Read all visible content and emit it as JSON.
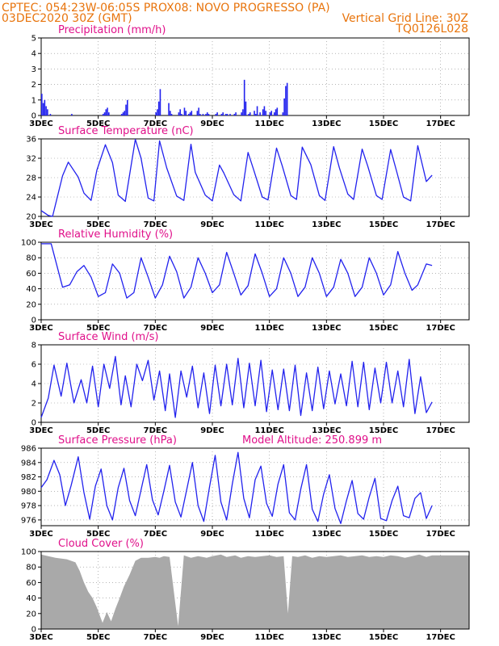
{
  "header": {
    "line1_left": "CPTEC:   054:23W-06:05S   PROX08: NOVO PROGRESSO (PA)",
    "line2_left": "03DEC2020 30Z (GMT)",
    "line2_right": "Vertical Grid Line: 30Z",
    "line3_right": "TQ0126L028"
  },
  "colors": {
    "header": "#e8740c",
    "panel_title": "#e0108a",
    "series": "#2222ee",
    "cloud": "#a9a9a9",
    "grid": "#888888"
  },
  "chart_data": [
    {
      "id": "precip",
      "type": "bar",
      "title": "Precipitation (mm/h)",
      "ylim": [
        0,
        5
      ],
      "yticks": [
        0,
        1,
        2,
        3,
        4,
        5
      ],
      "xticks": [
        "3DEC",
        "5DEC",
        "7DEC",
        "9DEC",
        "11DEC",
        "13DEC",
        "15DEC",
        "17DEC"
      ],
      "x": [
        0,
        0.1,
        0.2,
        0.3,
        0.4,
        0.6,
        2.1,
        4.3,
        4.4,
        4.5,
        4.6,
        4.7,
        5.6,
        5.7,
        5.8,
        5.9,
        6.0,
        8.0,
        8.1,
        8.2,
        8.3,
        8.9,
        9.0,
        9.1,
        9.6,
        9.7,
        9.8,
        10.0,
        10.1,
        10.3,
        10.4,
        10.5,
        10.9,
        11.0,
        11.1,
        11.3,
        11.5,
        11.6,
        11.7,
        12.2,
        12.3,
        12.6,
        12.7,
        12.9,
        13.0,
        13.2,
        13.5,
        13.6,
        14.0,
        14.1,
        14.2,
        14.3,
        14.5,
        14.6,
        14.9,
        15.0,
        15.1,
        15.3,
        15.5,
        15.6,
        15.7,
        16.0,
        16.1,
        16.3,
        16.4,
        16.5,
        16.9,
        17.0,
        17.1,
        17.2
      ],
      "values": [
        1.4,
        0.8,
        1.0,
        0.6,
        0.4,
        0.1,
        0.1,
        0.1,
        0.2,
        0.4,
        0.5,
        0.2,
        0.1,
        0.2,
        0.3,
        0.7,
        1.0,
        0.2,
        0.4,
        0.9,
        1.7,
        0.8,
        0.3,
        0.1,
        0.2,
        0.4,
        0.1,
        0.5,
        0.3,
        0.1,
        0.2,
        0.3,
        0.3,
        0.5,
        0.1,
        0.1,
        0.1,
        0.2,
        0.1,
        0.1,
        0.2,
        0.1,
        0.2,
        0.1,
        0.1,
        0.1,
        0.1,
        0.2,
        0.2,
        0.4,
        2.3,
        0.9,
        0.1,
        0.2,
        0.3,
        0.1,
        0.6,
        0.2,
        0.4,
        0.6,
        0.3,
        0.2,
        0.3,
        0.2,
        0.4,
        0.5,
        0.2,
        1.1,
        1.9,
        2.1
      ]
    },
    {
      "id": "temp",
      "type": "line",
      "title": "Surface Temperature (nC)",
      "ylim": [
        20,
        36
      ],
      "yticks": [
        20,
        24,
        28,
        32,
        36
      ],
      "xticks": [
        "3DEC",
        "5DEC",
        "7DEC",
        "9DEC",
        "11DEC",
        "13DEC",
        "15DEC",
        "17DEC"
      ],
      "x": [
        0,
        0.5,
        0.8,
        1.5,
        1.9,
        2.6,
        3.0,
        3.5,
        3.9,
        4.5,
        5.0,
        5.4,
        5.9,
        6.6,
        7.0,
        7.5,
        7.9,
        8.3,
        8.8,
        9.5,
        10.0,
        10.5,
        10.8,
        11.5,
        12.0,
        12.5,
        12.8,
        13.5,
        14.0,
        14.5,
        14.9,
        15.5,
        15.9,
        16.5,
        16.9,
        17.5,
        17.9,
        18.3,
        18.9,
        19.5,
        19.9,
        20.5,
        20.9,
        21.5,
        21.9,
        22.5,
        22.9,
        23.5,
        23.9,
        24.5,
        24.9,
        25.4,
        25.9,
        26.4,
        27.0,
        27.4
      ],
      "values": [
        21.2,
        20.2,
        20.0,
        28.4,
        31.2,
        28.1,
        24.8,
        23.3,
        29.5,
        34.8,
        31.1,
        24.4,
        23.1,
        35.9,
        32.0,
        23.8,
        23.2,
        35.6,
        30.0,
        24.2,
        23.3,
        34.9,
        29.1,
        24.4,
        23.2,
        30.6,
        29.0,
        24.5,
        23.2,
        33.2,
        29.6,
        24.0,
        23.4,
        34.1,
        30.4,
        24.3,
        23.5,
        34.3,
        30.7,
        24.3,
        23.3,
        34.4,
        30.1,
        24.6,
        23.5,
        33.9,
        30.3,
        24.3,
        23.5,
        33.8,
        29.5,
        24.0,
        23.2,
        34.6,
        27.2,
        28.5
      ]
    },
    {
      "id": "rh",
      "type": "line",
      "title": "Relative Humidity (%)",
      "ylim": [
        0,
        100
      ],
      "yticks": [
        0,
        20,
        40,
        60,
        80,
        100
      ],
      "xticks": [
        "3DEC",
        "5DEC",
        "7DEC",
        "9DEC",
        "11DEC",
        "13DEC",
        "15DEC",
        "17DEC"
      ],
      "x": [
        0,
        0.7,
        1.5,
        2.0,
        2.5,
        3.0,
        3.5,
        4.0,
        4.5,
        5.0,
        5.5,
        6.0,
        6.5,
        7.0,
        7.5,
        8.0,
        8.5,
        9.0,
        9.5,
        10.0,
        10.5,
        11.0,
        11.5,
        12.0,
        12.5,
        13.0,
        13.5,
        14.0,
        14.5,
        15.0,
        15.5,
        16.0,
        16.5,
        17.0,
        17.5,
        18.0,
        18.5,
        19.0,
        19.5,
        20.0,
        20.5,
        21.0,
        21.5,
        22.0,
        22.5,
        23.0,
        23.5,
        24.0,
        24.5,
        25.0,
        25.5,
        26.0,
        26.4,
        27.0,
        27.4
      ],
      "values": [
        98,
        98,
        42,
        45,
        62,
        70,
        55,
        30,
        35,
        72,
        60,
        28,
        35,
        80,
        55,
        28,
        45,
        82,
        62,
        28,
        42,
        80,
        60,
        35,
        45,
        87,
        60,
        32,
        44,
        85,
        60,
        30,
        40,
        80,
        60,
        30,
        42,
        80,
        60,
        30,
        42,
        78,
        60,
        30,
        42,
        80,
        60,
        32,
        45,
        88,
        60,
        38,
        45,
        72,
        70
      ]
    },
    {
      "id": "wind",
      "type": "line",
      "title": "Surface Wind (m/s)",
      "ylim": [
        0,
        8
      ],
      "yticks": [
        0,
        2,
        4,
        6,
        8
      ],
      "xticks": [
        "3DEC",
        "5DEC",
        "7DEC",
        "9DEC",
        "11DEC",
        "13DEC",
        "15DEC",
        "17DEC"
      ],
      "x": [
        0,
        0.5,
        0.9,
        1.4,
        1.8,
        2.3,
        2.8,
        3.2,
        3.6,
        4.0,
        4.4,
        4.8,
        5.2,
        5.6,
        5.9,
        6.3,
        6.7,
        7.1,
        7.5,
        7.9,
        8.3,
        8.7,
        9.0,
        9.4,
        9.8,
        10.2,
        10.6,
        11.0,
        11.4,
        11.8,
        12.2,
        12.6,
        13.0,
        13.4,
        13.8,
        14.2,
        14.6,
        15.0,
        15.4,
        15.8,
        16.2,
        16.6,
        17.0,
        17.4,
        17.8,
        18.2,
        18.6,
        19.0,
        19.4,
        19.8,
        20.2,
        20.6,
        21.0,
        21.4,
        21.8,
        22.2,
        22.6,
        23.0,
        23.4,
        23.8,
        24.2,
        24.6,
        25.0,
        25.4,
        25.8,
        26.2,
        26.6,
        27.0,
        27.4
      ],
      "values": [
        0.5,
        2.5,
        5.9,
        2.7,
        6.1,
        2.0,
        4.4,
        2.0,
        5.8,
        1.6,
        6.0,
        3.5,
        6.8,
        1.8,
        4.8,
        1.6,
        6.0,
        4.3,
        6.4,
        2.3,
        5.3,
        1.2,
        5.0,
        0.5,
        5.3,
        2.6,
        5.8,
        1.5,
        5.1,
        0.9,
        5.9,
        1.7,
        6.0,
        1.8,
        6.6,
        1.5,
        6.1,
        1.7,
        6.4,
        1.1,
        5.4,
        1.3,
        5.5,
        1.2,
        5.9,
        0.7,
        5.1,
        1.2,
        5.7,
        1.4,
        5.3,
        1.9,
        5.0,
        1.7,
        6.3,
        1.6,
        6.2,
        1.3,
        5.6,
        2.0,
        6.2,
        2.0,
        5.3,
        1.6,
        6.5,
        0.9,
        4.7,
        1.0,
        2.1
      ]
    },
    {
      "id": "pressure",
      "type": "line",
      "title": "Surface Pressure (hPa)",
      "annotation": "Model Altitude: 250.899 m",
      "ylim": [
        975.2,
        986
      ],
      "yticks": [
        976,
        978,
        980,
        982,
        984,
        986
      ],
      "xticks": [
        "3DEC",
        "5DEC",
        "7DEC",
        "9DEC",
        "11DEC",
        "13DEC",
        "15DEC",
        "17DEC"
      ],
      "x": [
        0,
        0.4,
        0.9,
        1.3,
        1.7,
        2.1,
        2.6,
        3.0,
        3.4,
        3.8,
        4.2,
        4.6,
        5.0,
        5.4,
        5.8,
        6.2,
        6.6,
        7.0,
        7.4,
        7.8,
        8.2,
        8.6,
        9.0,
        9.4,
        9.8,
        10.2,
        10.6,
        11.0,
        11.4,
        11.8,
        12.2,
        12.6,
        13.0,
        13.4,
        13.8,
        14.2,
        14.6,
        15.0,
        15.4,
        15.8,
        16.2,
        16.6,
        17.0,
        17.4,
        17.8,
        18.2,
        18.6,
        19.0,
        19.4,
        19.8,
        20.2,
        20.6,
        21.0,
        21.4,
        21.8,
        22.2,
        22.6,
        23.0,
        23.4,
        23.8,
        24.2,
        24.6,
        25.0,
        25.4,
        25.8,
        26.2,
        26.6,
        27.0,
        27.4
      ],
      "values": [
        980.5,
        981.6,
        984.3,
        982.3,
        978.0,
        980.8,
        984.8,
        979.8,
        976.1,
        980.7,
        983.1,
        978.0,
        976.0,
        980.5,
        983.2,
        978.7,
        976.6,
        980.2,
        983.7,
        978.8,
        976.7,
        980.0,
        983.6,
        978.5,
        976.4,
        980.2,
        984.0,
        978.0,
        975.8,
        980.6,
        985.0,
        978.5,
        976.0,
        981.0,
        985.4,
        979.0,
        976.3,
        981.6,
        983.5,
        978.3,
        976.5,
        981.0,
        983.7,
        977.0,
        976.0,
        980.3,
        983.7,
        977.5,
        975.8,
        979.6,
        982.3,
        977.6,
        975.5,
        978.7,
        981.5,
        976.9,
        976.1,
        979.2,
        981.8,
        976.2,
        975.9,
        978.7,
        980.7,
        976.6,
        976.3,
        979.0,
        979.8,
        976.2,
        978.0
      ]
    },
    {
      "id": "cloud",
      "type": "area",
      "title": "Cloud Cover (%)",
      "ylim": [
        0,
        100
      ],
      "yticks": [
        0,
        20,
        40,
        60,
        80,
        100
      ],
      "xticks": [
        "3DEC",
        "5DEC",
        "7DEC",
        "9DEC",
        "11DEC",
        "13DEC",
        "15DEC",
        "17DEC"
      ],
      "x": [
        0,
        1.0,
        1.8,
        2.4,
        2.7,
        3.0,
        3.3,
        3.6,
        3.9,
        4.1,
        4.3,
        4.6,
        4.9,
        5.2,
        5.5,
        5.8,
        6.2,
        6.6,
        7.0,
        7.5,
        8.0,
        8.3,
        8.6,
        9.0,
        9.6,
        10.0,
        10.5,
        11.0,
        11.6,
        12.0,
        12.6,
        13.0,
        13.6,
        14.0,
        14.5,
        15.0,
        15.5,
        16.0,
        16.5,
        17.0,
        17.3,
        17.6,
        18.0,
        18.5,
        19.0,
        19.5,
        20.0,
        20.5,
        21.0,
        21.5,
        22.0,
        22.5,
        23.0,
        23.5,
        24.0,
        24.5,
        25.0,
        25.5,
        26.0,
        26.5,
        27.0,
        27.4
      ],
      "values": [
        96,
        92,
        90,
        86,
        75,
        60,
        48,
        40,
        28,
        18,
        8,
        22,
        10,
        26,
        40,
        55,
        70,
        88,
        92,
        92,
        93,
        92,
        94,
        93,
        4,
        95,
        92,
        94,
        92,
        94,
        96,
        93,
        95,
        92,
        94,
        93,
        94,
        95,
        93,
        94,
        20,
        94,
        93,
        95,
        92,
        94,
        93,
        94,
        95,
        93,
        94,
        95,
        93,
        94,
        93,
        95,
        94,
        92,
        94,
        96,
        93,
        95
      ]
    }
  ]
}
